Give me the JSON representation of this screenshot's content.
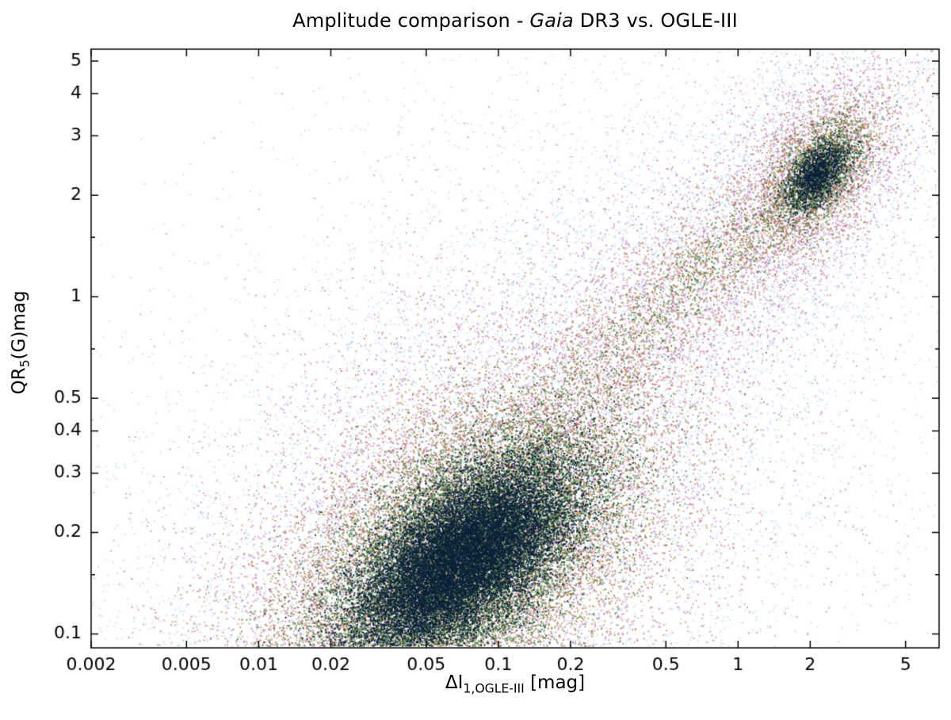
{
  "chart_data": {
    "type": "scatter",
    "title": {
      "prefix": "Amplitude comparison - ",
      "italic": "Gaia",
      "suffix": " DR3 vs. OGLE-III"
    },
    "xlabel": {
      "main": "ΔI",
      "sub": "1,OGLE-III",
      "suffix": " [mag]"
    },
    "ylabel": {
      "main": "QR",
      "sub": "5",
      "suffix": "(G)mag"
    },
    "xscale": "log",
    "yscale": "log",
    "xlim": [
      0.002,
      6.9
    ],
    "ylim": [
      0.091,
      5.42
    ],
    "grid": false,
    "legend": null,
    "xticks": [
      {
        "v": 0.002,
        "label": "0.002"
      },
      {
        "v": 0.005,
        "label": "0.005"
      },
      {
        "v": 0.01,
        "label": "0.01"
      },
      {
        "v": 0.02,
        "label": "0.02"
      },
      {
        "v": 0.05,
        "label": "0.05"
      },
      {
        "v": 0.1,
        "label": "0.1"
      },
      {
        "v": 0.2,
        "label": "0.2"
      },
      {
        "v": 0.5,
        "label": "0.5"
      },
      {
        "v": 1,
        "label": "1"
      },
      {
        "v": 2,
        "label": "2"
      },
      {
        "v": 5,
        "label": "5"
      }
    ],
    "yticks": [
      {
        "v": 5,
        "label": "5"
      },
      {
        "v": 4,
        "label": "4"
      },
      {
        "v": 3,
        "label": "3"
      },
      {
        "v": 2,
        "label": "2"
      },
      {
        "v": 1.5,
        "label": ""
      },
      {
        "v": 1,
        "label": "1"
      },
      {
        "v": 0.7,
        "label": ""
      },
      {
        "v": 0.5,
        "label": "0.5"
      },
      {
        "v": 0.4,
        "label": "0.4"
      },
      {
        "v": 0.3,
        "label": "0.3"
      },
      {
        "v": 0.2,
        "label": "0.2"
      },
      {
        "v": 0.15,
        "label": ""
      },
      {
        "v": 0.1,
        "label": "0.1"
      }
    ],
    "palette": {
      "sparse": "#a6c4e6",
      "low": "#b65c9d",
      "mid": "#a5672a",
      "high": "#357430",
      "core": "#0c2138"
    },
    "density_legend": "point color encodes local density: sparse (light blue) -> low (pink) -> mid (orange) -> high (green) -> core (dark navy)",
    "clusters": [
      {
        "name": "main-blob",
        "cx": -1.15,
        "cy": -0.78,
        "angle_deg": 26.6,
        "layers": [
          {
            "color": "sparse",
            "n": 8000,
            "sa": 0.85,
            "sb": 0.5
          },
          {
            "color": "low",
            "n": 9000,
            "sa": 0.62,
            "sb": 0.34
          },
          {
            "color": "mid",
            "n": 11000,
            "sa": 0.47,
            "sb": 0.235
          },
          {
            "color": "high",
            "n": 13000,
            "sa": 0.345,
            "sb": 0.16
          },
          {
            "color": "core",
            "n": 16000,
            "sa": 0.25,
            "sb": 0.105
          }
        ]
      },
      {
        "name": "diagonal-bridge",
        "cx": -0.19,
        "cy": 0.05,
        "angle_deg": 32,
        "layers": [
          {
            "color": "sparse",
            "n": 2600,
            "sa": 0.62,
            "sb": 0.3
          },
          {
            "color": "low",
            "n": 2400,
            "sa": 0.55,
            "sb": 0.17
          },
          {
            "color": "mid",
            "n": 1500,
            "sa": 0.48,
            "sb": 0.1
          },
          {
            "color": "high",
            "n": 600,
            "sa": 0.38,
            "sb": 0.06
          }
        ]
      },
      {
        "name": "upper-right-cluster",
        "cx": 0.33,
        "cy": 0.36,
        "angle_deg": 35,
        "layers": [
          {
            "color": "sparse",
            "n": 2000,
            "sa": 0.3,
            "sb": 0.19
          },
          {
            "color": "low",
            "n": 1800,
            "sa": 0.22,
            "sb": 0.13
          },
          {
            "color": "mid",
            "n": 1500,
            "sa": 0.16,
            "sb": 0.09
          },
          {
            "color": "high",
            "n": 1500,
            "sa": 0.115,
            "sb": 0.06
          },
          {
            "color": "core",
            "n": 1300,
            "sa": 0.07,
            "sb": 0.038
          }
        ]
      },
      {
        "name": "background-halo",
        "cx": -1.25,
        "cy": -0.45,
        "angle_deg": 25,
        "layers": [
          {
            "color": "sparse",
            "n": 2600,
            "sa": 1.25,
            "sb": 0.55
          },
          {
            "color": "low",
            "n": 500,
            "sa": 1.05,
            "sb": 0.45
          }
        ]
      },
      {
        "name": "lower-right-outliers",
        "cx": 0.45,
        "cy": -0.72,
        "angle_deg": 0,
        "layers": [
          {
            "color": "sparse",
            "n": 130,
            "sa": 0.28,
            "sb": 0.2
          },
          {
            "color": "low",
            "n": 15,
            "sa": 0.22,
            "sb": 0.15
          }
        ]
      }
    ]
  }
}
